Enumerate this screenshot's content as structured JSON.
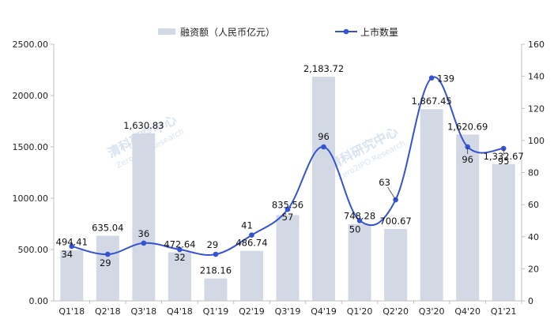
{
  "chart_data": {
    "type": "bar+line",
    "categories": [
      "Q1'18",
      "Q2'18",
      "Q3'18",
      "Q4'18",
      "Q1'19",
      "Q2'19",
      "Q3'19",
      "Q4'19",
      "Q1'20",
      "Q2'20",
      "Q3'20",
      "Q4'20",
      "Q1'21"
    ],
    "series": [
      {
        "name": "融资额（人民币亿元）",
        "type": "bar",
        "axis": "left",
        "values": [
          494.41,
          635.04,
          1630.83,
          472.64,
          218.16,
          486.74,
          835.56,
          2183.72,
          748.28,
          700.67,
          1867.45,
          1620.69,
          1332.67
        ],
        "labels": [
          "494.41",
          "635.04",
          "1,630.83",
          "472.64",
          "218.16",
          "486.74",
          "835.56",
          "2,183.72",
          "748.28",
          "700.67",
          "1,867.45",
          "1,620.69",
          "1,332.67"
        ]
      },
      {
        "name": "上市数量",
        "type": "line",
        "axis": "right",
        "values": [
          34,
          29,
          36,
          32,
          29,
          41,
          57,
          96,
          50,
          63,
          139,
          96,
          95
        ],
        "labels": [
          "34",
          "29",
          "36",
          "32",
          "29",
          "41",
          "57",
          "96",
          "50",
          "63",
          "139",
          "96",
          "95"
        ]
      }
    ],
    "y_left": {
      "min": 0,
      "max": 2500,
      "ticks": [
        "0.00",
        "500.00",
        "1000.00",
        "1500.00",
        "2000.00",
        "2500.00"
      ]
    },
    "y_right": {
      "min": 0,
      "max": 160,
      "ticks": [
        "0",
        "20",
        "40",
        "60",
        "80",
        "100",
        "120",
        "140",
        "160"
      ]
    },
    "legend_position": "top",
    "colors": {
      "bar": "#d3d9e4",
      "line": "#3452d6",
      "axis": "#bfbfbf"
    },
    "watermark": "清科研究中心 Zero2IPO Research"
  }
}
